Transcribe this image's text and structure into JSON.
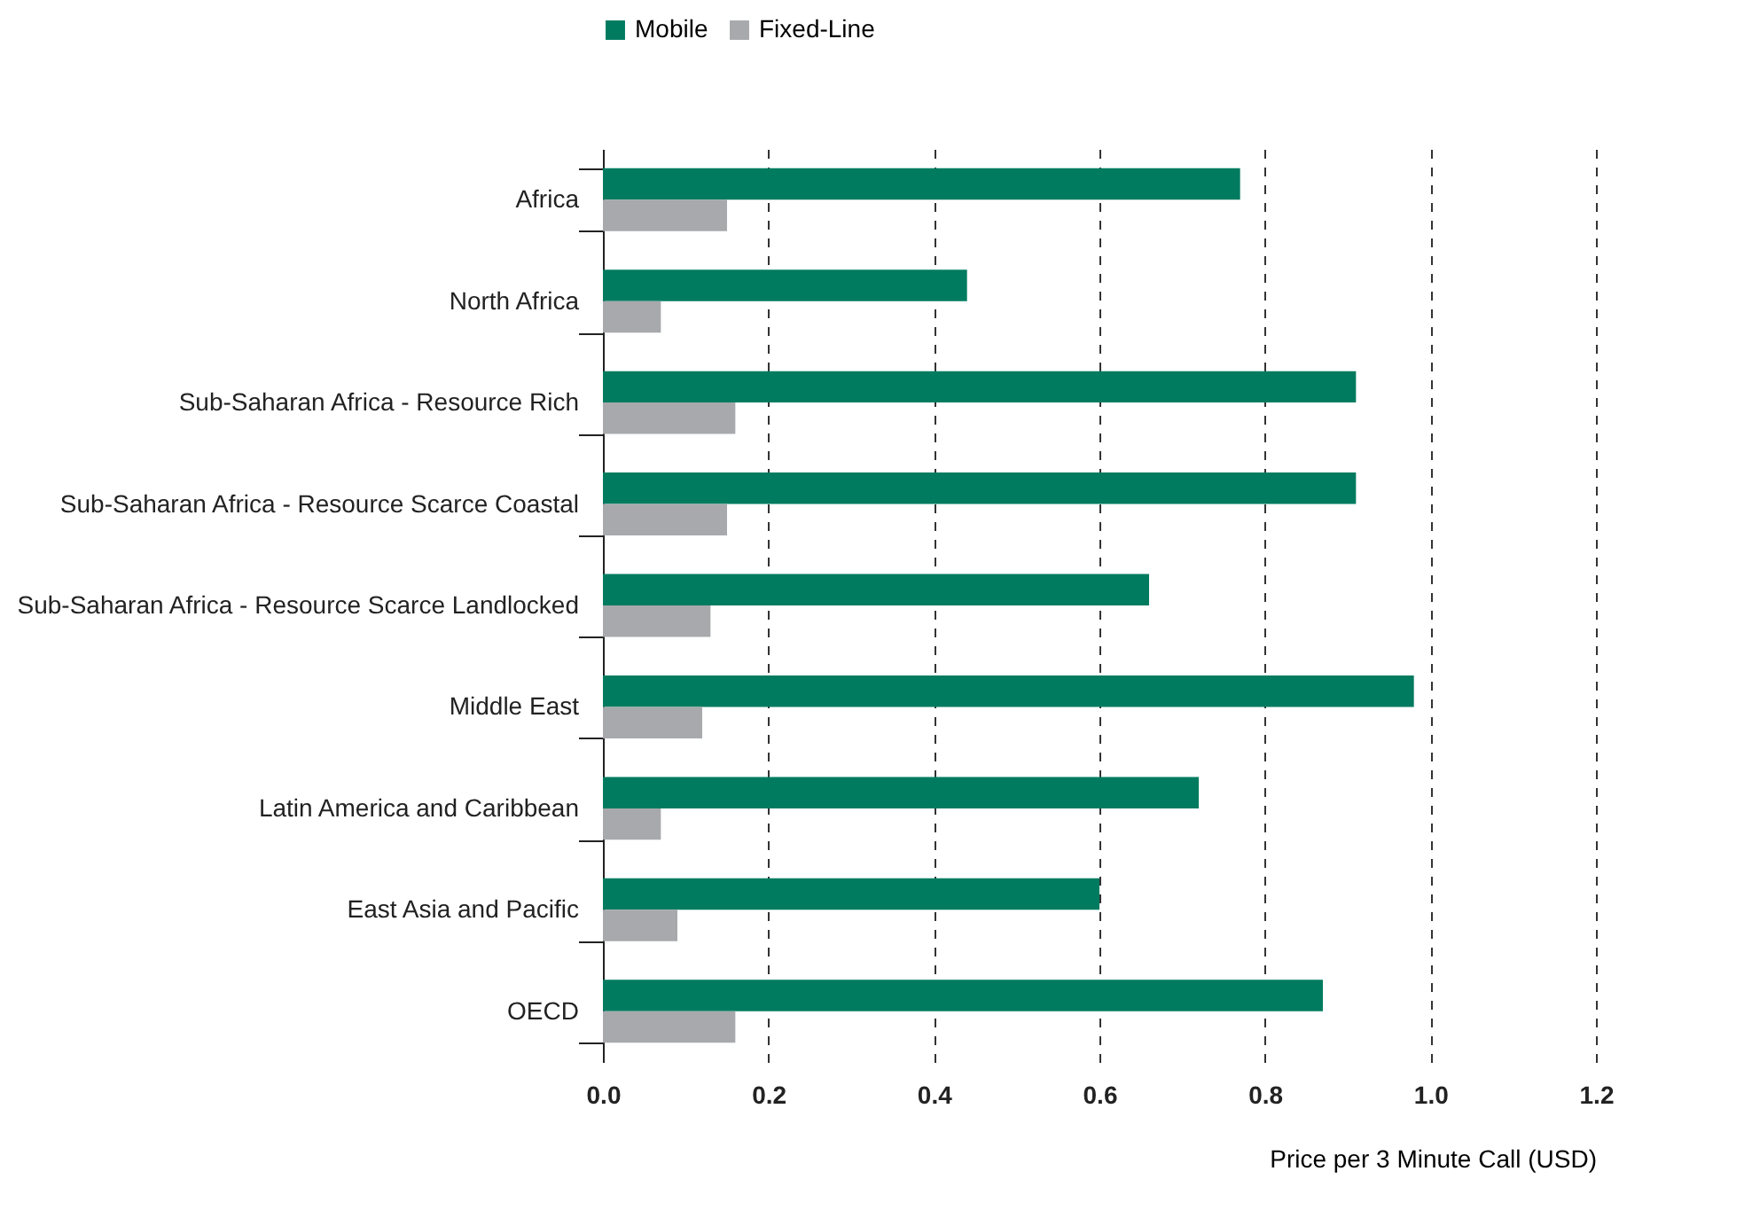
{
  "chart_data": {
    "type": "bar",
    "orientation": "horizontal",
    "xlabel": "Price per 3 Minute Call (USD)",
    "categories": [
      "Africa",
      "North Africa",
      "Sub-Saharan Africa - Resource Rich",
      "Sub-Saharan Africa - Resource Scarce Coastal",
      "Sub-Saharan Africa - Resource Scarce Landlocked",
      "Middle East",
      "Latin America and Caribbean",
      "East Asia and Pacific",
      "OECD"
    ],
    "series": [
      {
        "name": "Mobile",
        "color": "#007b5f",
        "values": [
          0.77,
          0.44,
          0.91,
          0.91,
          0.66,
          0.98,
          0.72,
          0.6,
          0.87
        ]
      },
      {
        "name": "Fixed-Line",
        "color": "#a7a9ac",
        "values": [
          0.15,
          0.07,
          0.16,
          0.15,
          0.13,
          0.12,
          0.07,
          0.09,
          0.16
        ]
      }
    ],
    "xlim": [
      0,
      1.2
    ],
    "xticks": [
      {
        "value": 0,
        "label": "0.0"
      },
      {
        "value": 0.2,
        "label": "0.2"
      },
      {
        "value": 0.4,
        "label": "0.4"
      },
      {
        "value": 0.6,
        "label": "0.6"
      },
      {
        "value": 0.8,
        "label": "0.8"
      },
      {
        "value": 1,
        "label": "1.0"
      },
      {
        "value": 1.2,
        "label": "1.2"
      }
    ],
    "grid": "x",
    "legend": "top"
  }
}
